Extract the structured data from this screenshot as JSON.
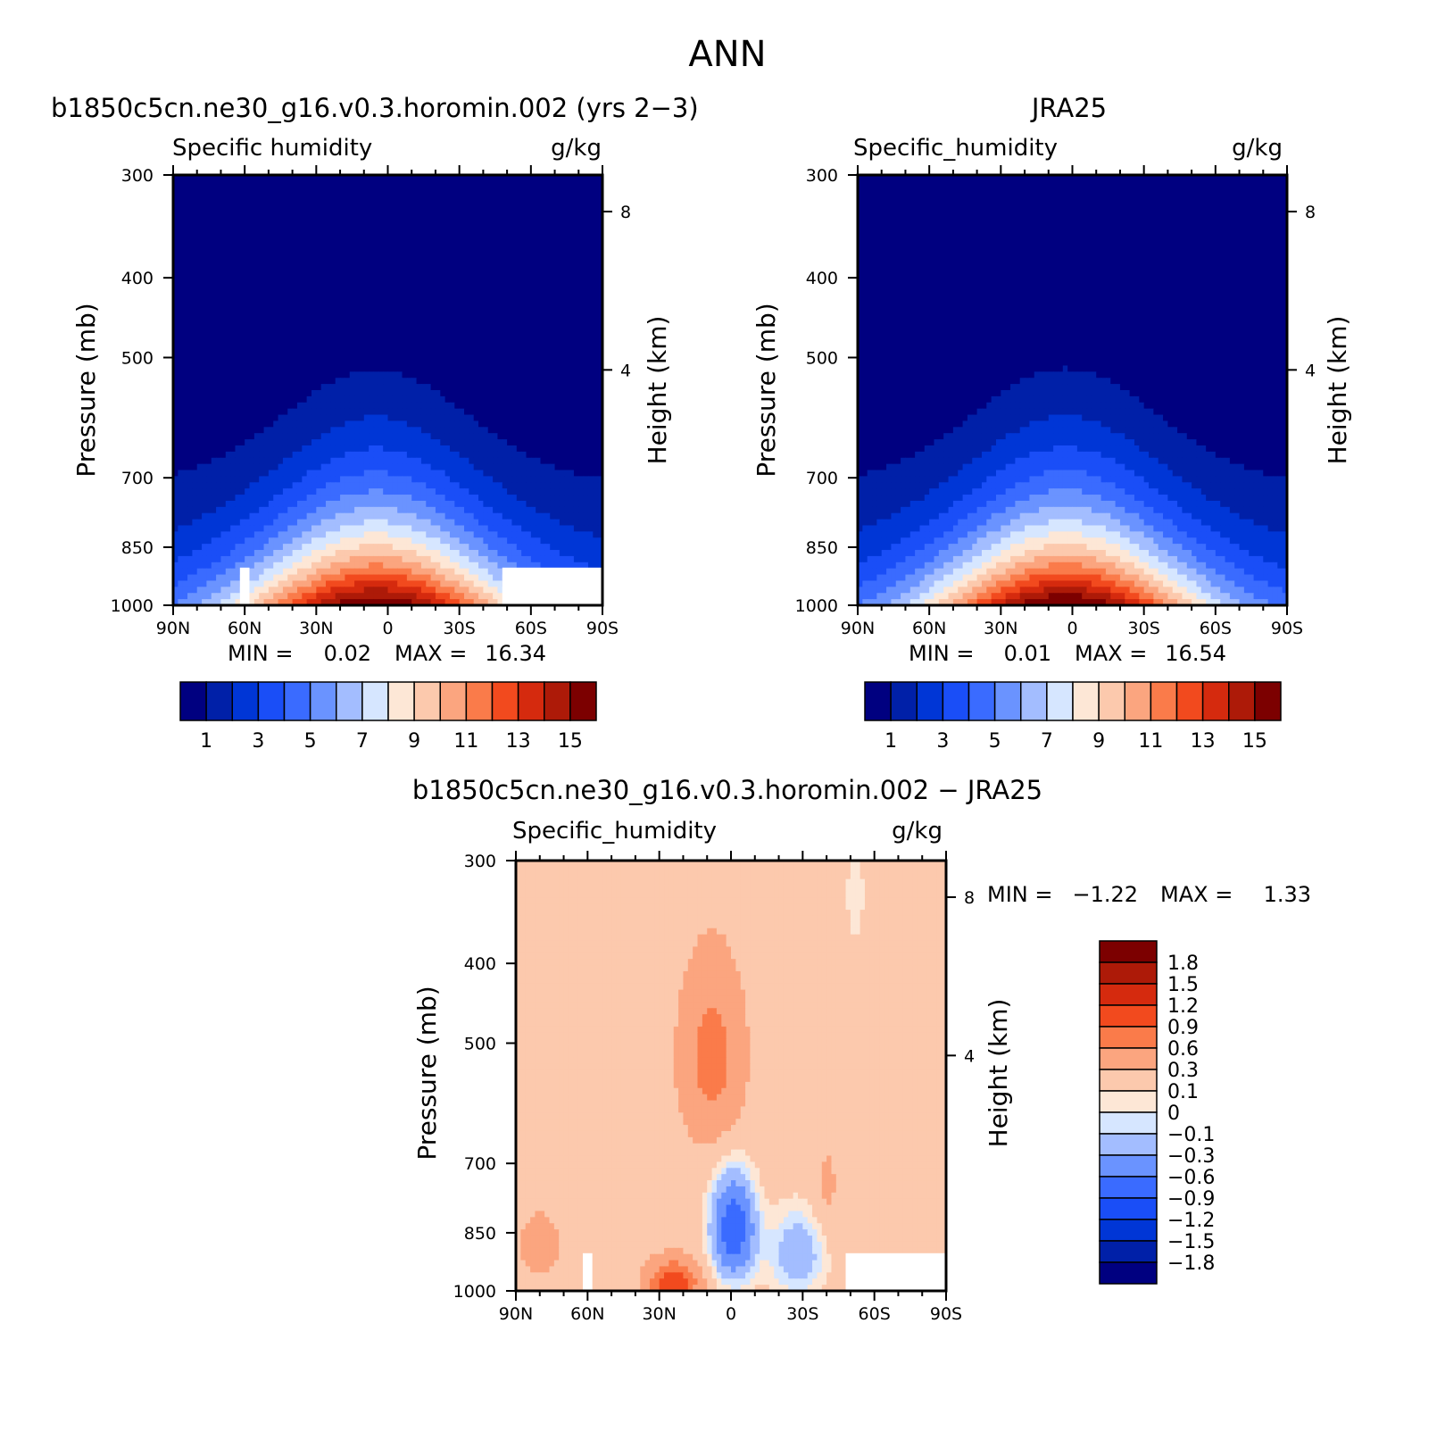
{
  "figure_title": "ANN",
  "chart_data": [
    {
      "type": "heatmap",
      "panel": "model",
      "title": "b1850c5cn.ne30_g16.v0.3.horomin.002 (yrs 2−3)",
      "left_label": "Specific humidity",
      "units": "g/kg",
      "ylabel": "Pressure (mb)",
      "ylabel_right": "Height (km)",
      "x_ticks": [
        "90N",
        "60N",
        "30N",
        "0",
        "30S",
        "60S",
        "90S"
      ],
      "y_ticks": [
        "300",
        "400",
        "500",
        "700",
        "850",
        "1000"
      ],
      "y_right_ticks": [
        "8",
        "4"
      ],
      "ylim": [
        1000,
        300
      ],
      "min_text": "MIN =",
      "min_value": "0.02",
      "max_text": "MAX =",
      "max_value": "16.34",
      "peak_value": 16.34,
      "peak_lat": 5,
      "colorbar_labels": [
        "1",
        "3",
        "5",
        "7",
        "9",
        "11",
        "13",
        "15"
      ],
      "levels": [
        1,
        2,
        3,
        4,
        5,
        6,
        7,
        8,
        9,
        10,
        11,
        12,
        13,
        14,
        15
      ],
      "colors": [
        "#000080",
        "#0020a8",
        "#0036d6",
        "#1a4ef7",
        "#3a6bff",
        "#6a93ff",
        "#a3bdff",
        "#d6e6ff",
        "#fde7d6",
        "#fcc9ad",
        "#fba57f",
        "#fa7b4a",
        "#f24a1e",
        "#d52a0e",
        "#ad1a08",
        "#7c0000"
      ]
    },
    {
      "type": "heatmap",
      "panel": "obs",
      "title": "JRA25",
      "left_label": "Specific_humidity",
      "units": "g/kg",
      "ylabel": "Pressure (mb)",
      "ylabel_right": "Height (km)",
      "x_ticks": [
        "90N",
        "60N",
        "30N",
        "0",
        "30S",
        "60S",
        "90S"
      ],
      "y_ticks": [
        "300",
        "400",
        "500",
        "700",
        "850",
        "1000"
      ],
      "y_right_ticks": [
        "8",
        "4"
      ],
      "ylim": [
        1000,
        300
      ],
      "min_text": "MIN =",
      "min_value": "0.01",
      "max_text": "MAX =",
      "max_value": "16.54",
      "peak_value": 16.54,
      "peak_lat": 3,
      "colorbar_labels": [
        "1",
        "3",
        "5",
        "7",
        "9",
        "11",
        "13",
        "15"
      ],
      "levels": [
        1,
        2,
        3,
        4,
        5,
        6,
        7,
        8,
        9,
        10,
        11,
        12,
        13,
        14,
        15
      ],
      "colors": [
        "#000080",
        "#0020a8",
        "#0036d6",
        "#1a4ef7",
        "#3a6bff",
        "#6a93ff",
        "#a3bdff",
        "#d6e6ff",
        "#fde7d6",
        "#fcc9ad",
        "#fba57f",
        "#fa7b4a",
        "#f24a1e",
        "#d52a0e",
        "#ad1a08",
        "#7c0000"
      ]
    },
    {
      "type": "heatmap",
      "panel": "difference",
      "title": "b1850c5cn.ne30_g16.v0.3.horomin.002 − JRA25",
      "left_label": "Specific_humidity",
      "units": "g/kg",
      "ylabel": "Pressure (mb)",
      "ylabel_right": "Height (km)",
      "x_ticks": [
        "90N",
        "60N",
        "30N",
        "0",
        "30S",
        "60S",
        "90S"
      ],
      "y_ticks": [
        "300",
        "400",
        "500",
        "700",
        "850",
        "1000"
      ],
      "y_right_ticks": [
        "8",
        "4"
      ],
      "ylim": [
        1000,
        300
      ],
      "min_text": "MIN =",
      "min_value": "−1.22",
      "max_text": "MAX =",
      "max_value": "1.33",
      "colorbar_labels": [
        "1.8",
        "1.5",
        "1.2",
        "0.9",
        "0.6",
        "0.3",
        "0.1",
        "0",
        "−0.1",
        "−0.3",
        "−0.6",
        "−0.9",
        "−1.2",
        "−1.5",
        "−1.8"
      ],
      "levels": [
        -1.8,
        -1.5,
        -1.2,
        -0.9,
        -0.6,
        -0.3,
        -0.1,
        0,
        0.1,
        0.3,
        0.6,
        0.9,
        1.2,
        1.5,
        1.8
      ],
      "colors": [
        "#000080",
        "#0020a8",
        "#0036d6",
        "#1a4ef7",
        "#3a6bff",
        "#6a93ff",
        "#a3bdff",
        "#d6e6ff",
        "#fde7d6",
        "#fcc9ad",
        "#fba57f",
        "#fa7b4a",
        "#f24a1e",
        "#d52a0e",
        "#ad1a08",
        "#7c0000"
      ]
    }
  ]
}
